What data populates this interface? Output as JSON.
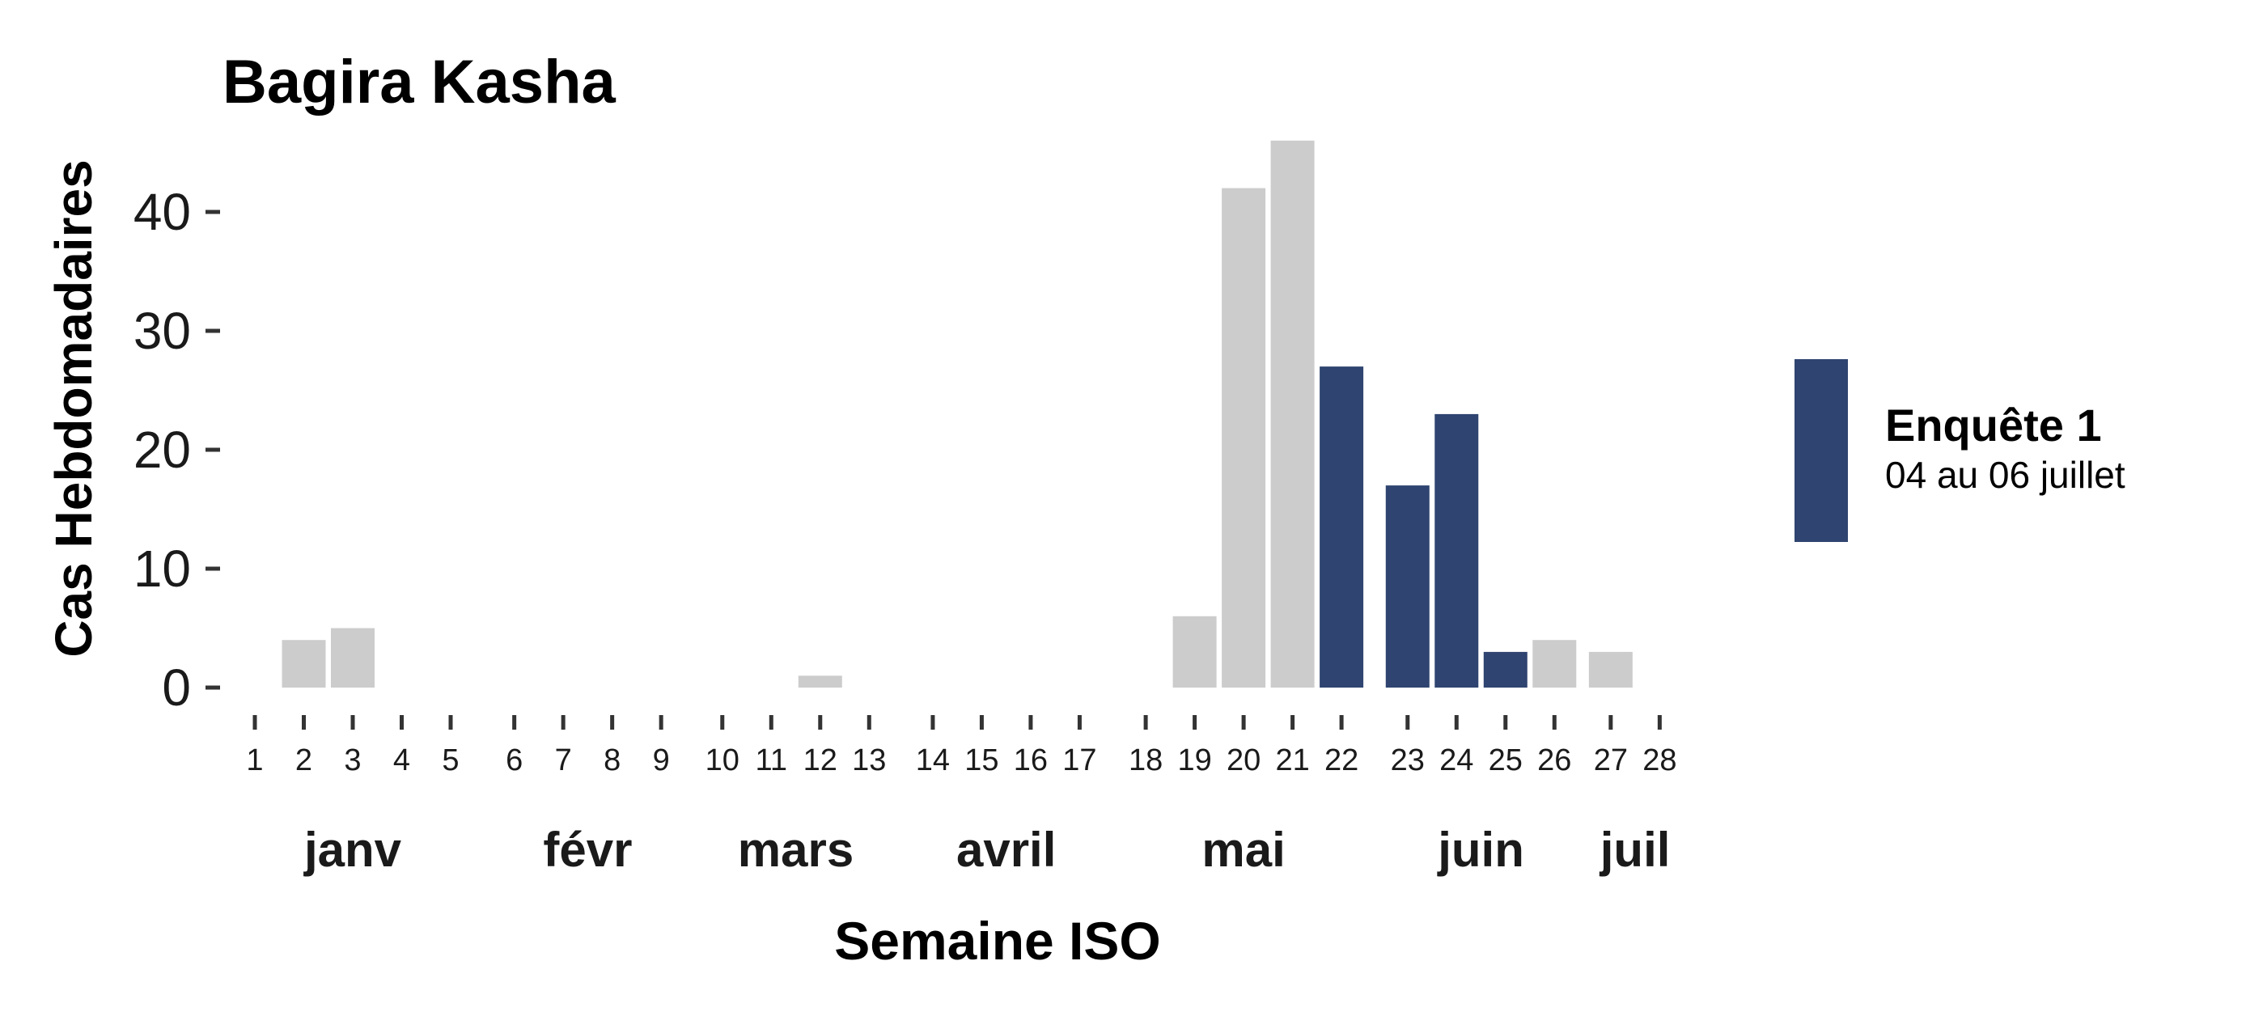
{
  "chart_data": {
    "type": "bar",
    "title": "Bagira Kasha",
    "xlabel": "Semaine ISO",
    "ylabel": "Cas Hebdomadaires",
    "ylim": [
      0,
      46
    ],
    "yticks": [
      0,
      10,
      20,
      30,
      40
    ],
    "yticks_labels": [
      "0",
      "10",
      "20",
      "30",
      "40"
    ],
    "grid": false,
    "colors": {
      "default": "#cccccc",
      "highlight": "#2f4470"
    },
    "weeks": [
      1,
      2,
      3,
      4,
      5,
      6,
      7,
      8,
      9,
      10,
      11,
      12,
      13,
      14,
      15,
      16,
      17,
      18,
      19,
      20,
      21,
      22,
      23,
      24,
      25,
      26,
      27,
      28
    ],
    "week_labels": [
      "1",
      "2",
      "3",
      "4",
      "5",
      "6",
      "7",
      "8",
      "9",
      "10",
      "11",
      "12",
      "13",
      "14",
      "15",
      "16",
      "17",
      "18",
      "19",
      "20",
      "21",
      "22",
      "23",
      "24",
      "25",
      "26",
      "27",
      "28"
    ],
    "week_pos": [
      1,
      2,
      3,
      4,
      5,
      6.3,
      7.3,
      8.3,
      9.3,
      10.55,
      11.55,
      12.55,
      13.55,
      14.85,
      15.85,
      16.85,
      17.85,
      19.2,
      20.2,
      21.2,
      22.2,
      23.2,
      24.55,
      25.55,
      26.55,
      27.55,
      28.7,
      29.7
    ],
    "values": [
      0,
      4,
      5,
      0,
      0,
      0,
      0,
      0,
      0,
      0,
      0,
      1,
      0,
      0,
      0,
      0,
      0,
      0,
      6,
      42,
      46,
      27,
      17,
      23,
      3,
      4,
      3,
      0
    ],
    "highlight": [
      false,
      false,
      false,
      false,
      false,
      false,
      false,
      false,
      false,
      false,
      false,
      false,
      false,
      false,
      false,
      false,
      false,
      false,
      false,
      false,
      false,
      true,
      true,
      true,
      true,
      false,
      false,
      false
    ],
    "months": [
      {
        "label": "janv",
        "start": 1,
        "end": 5
      },
      {
        "label": "févr",
        "start": 6.3,
        "end": 9.3
      },
      {
        "label": "mars",
        "start": 10.55,
        "end": 13.55
      },
      {
        "label": "avril",
        "start": 14.85,
        "end": 17.85
      },
      {
        "label": "mai",
        "start": 19.2,
        "end": 23.2
      },
      {
        "label": "juin",
        "start": 24.55,
        "end": 27.55
      },
      {
        "label": "juil",
        "start": 28.7,
        "end": 29.7
      }
    ],
    "legend": {
      "position": "right",
      "title": "Enquête 1",
      "subtitle": "04 au 06 juillet",
      "color": "#2f4470"
    }
  }
}
